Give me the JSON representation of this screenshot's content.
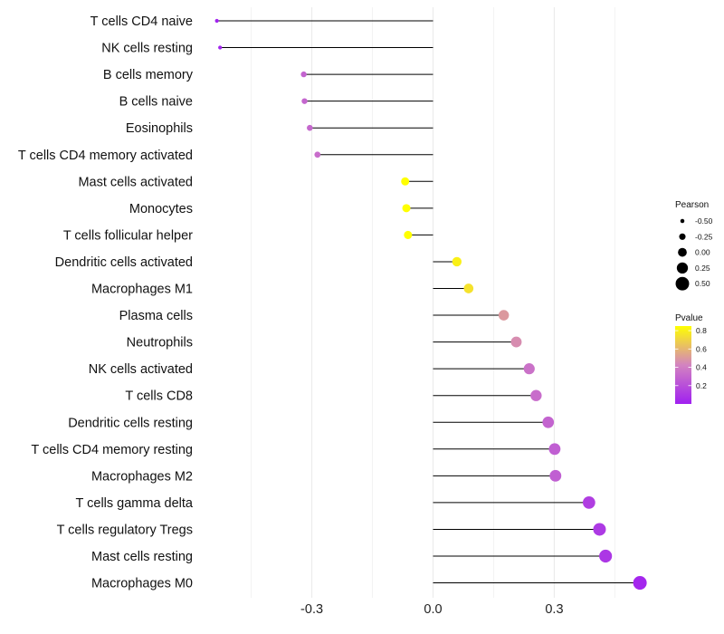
{
  "chart_data": {
    "type": "lollipop",
    "title": "",
    "xlabel": "",
    "ylabel": "",
    "xlim": [
      -0.53,
      0.53
    ],
    "x_ticks": [
      {
        "value": -0.3,
        "label": "-0.3"
      },
      {
        "value": 0.0,
        "label": "0.0"
      },
      {
        "value": 0.3,
        "label": "0.3"
      }
    ],
    "minor_gridlines": [
      -0.45,
      -0.15,
      0.15,
      0.45
    ],
    "categories": [
      "T cells CD4 naive",
      "NK cells resting",
      "B cells memory",
      "B cells naive",
      "Eosinophils",
      "T cells CD4 memory activated",
      "Mast cells activated",
      "Monocytes",
      "T cells follicular helper",
      "Dendritic cells activated",
      "Macrophages M1",
      "Plasma cells",
      "Neutrophils",
      "NK cells activated",
      "T cells CD8",
      "Dendritic cells resting",
      "T cells CD4 memory resting",
      "Macrophages M2",
      "T cells gamma delta",
      "T cells regulatory  Tregs",
      "Mast cells resting",
      "Macrophages M0"
    ],
    "series": [
      {
        "name": "Pearson",
        "values": [
          -0.535,
          -0.527,
          -0.32,
          -0.318,
          -0.305,
          -0.286,
          -0.069,
          -0.066,
          -0.062,
          0.059,
          0.088,
          0.175,
          0.206,
          0.238,
          0.255,
          0.285,
          0.301,
          0.303,
          0.386,
          0.412,
          0.427,
          0.512
        ]
      },
      {
        "name": "Pvalue",
        "values": [
          0.01,
          0.02,
          0.29,
          0.3,
          0.31,
          0.33,
          0.85,
          0.85,
          0.86,
          0.8,
          0.75,
          0.5,
          0.46,
          0.35,
          0.33,
          0.29,
          0.27,
          0.27,
          0.13,
          0.11,
          0.1,
          0.03
        ]
      }
    ],
    "legend": {
      "position": "right",
      "size_title": "Pearson",
      "size_entries": [
        {
          "value": -0.5,
          "label": "-0.50"
        },
        {
          "value": -0.25,
          "label": "-0.25"
        },
        {
          "value": 0.0,
          "label": "0.00"
        },
        {
          "value": 0.25,
          "label": "0.25"
        },
        {
          "value": 0.5,
          "label": "0.50"
        }
      ],
      "color_title": "Pvalue",
      "color_range": [
        0.0,
        0.85
      ],
      "color_ticks": [
        {
          "value": 0.8,
          "label": "0.8"
        },
        {
          "value": 0.6,
          "label": "0.6"
        },
        {
          "value": 0.4,
          "label": "0.4"
        },
        {
          "value": 0.2,
          "label": "0.2"
        }
      ],
      "color_low": "#a020f0",
      "color_mid": "#d383c0",
      "color_high": "#ffff00"
    },
    "stem_color": "#000000",
    "grid_color": "#ebebeb",
    "background": "#ffffff"
  }
}
